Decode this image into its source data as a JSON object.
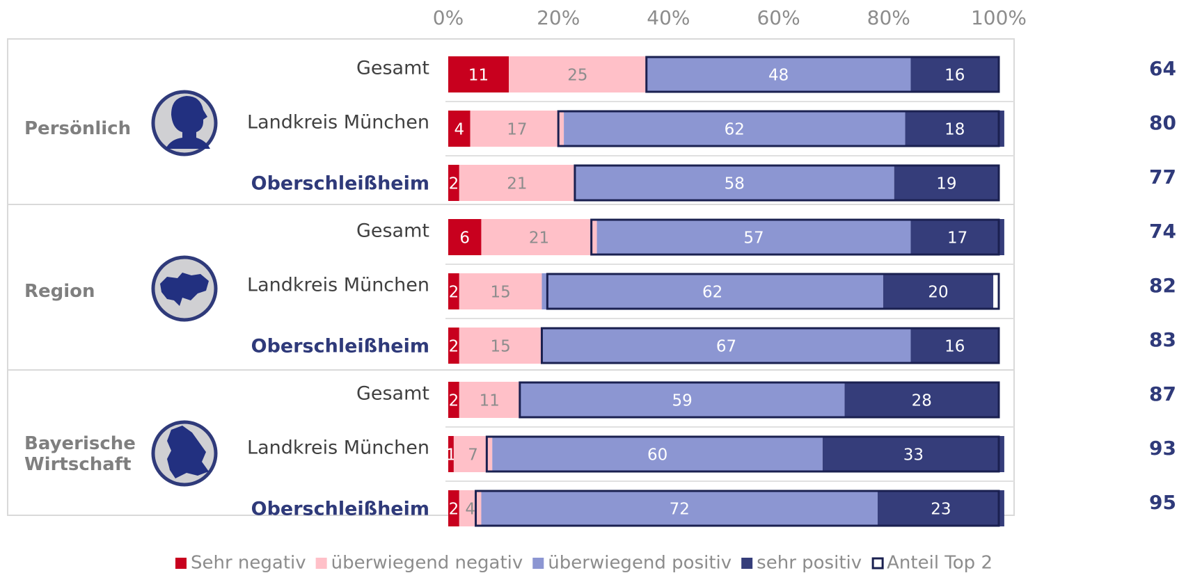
{
  "chart_data": {
    "type": "stacked-bar-horizontal",
    "groups": [
      "Persönlich",
      "Region",
      "Bayerische Wirtschaft"
    ],
    "categories": [
      "Gesamt",
      "Landkreis München",
      "Oberschleißheim",
      "Gesamt",
      "Landkreis München",
      "Oberschleißheim",
      "Gesamt",
      "Landkreis München",
      "Oberschleißheim"
    ],
    "series": [
      {
        "name": "Sehr negativ",
        "color": "#c8001e",
        "values": [
          11,
          4,
          2,
          6,
          2,
          2,
          2,
          1,
          2
        ]
      },
      {
        "name": "überwiegend negativ",
        "color": "#ffc0c8",
        "values": [
          25,
          17,
          21,
          21,
          15,
          15,
          11,
          7,
          4
        ]
      },
      {
        "name": "überwiegend positiv",
        "color": "#8c96d2",
        "values": [
          48,
          62,
          58,
          57,
          62,
          67,
          59,
          60,
          72
        ]
      },
      {
        "name": "sehr positiv",
        "color": "#353d7a",
        "values": [
          16,
          18,
          19,
          17,
          20,
          16,
          28,
          33,
          23
        ]
      }
    ],
    "top2": {
      "name": "Anteil Top 2",
      "color": "#1a2050",
      "values": [
        64,
        80,
        77,
        74,
        82,
        83,
        87,
        93,
        95
      ]
    },
    "xlim": [
      0,
      100
    ],
    "xticks": [
      {
        "value": 0,
        "label": "0%"
      },
      {
        "value": 20,
        "label": "20%"
      },
      {
        "value": 40,
        "label": "40%"
      },
      {
        "value": 60,
        "label": "60%"
      },
      {
        "value": 80,
        "label": "80%"
      },
      {
        "value": 100,
        "label": "100%"
      }
    ]
  }
}
